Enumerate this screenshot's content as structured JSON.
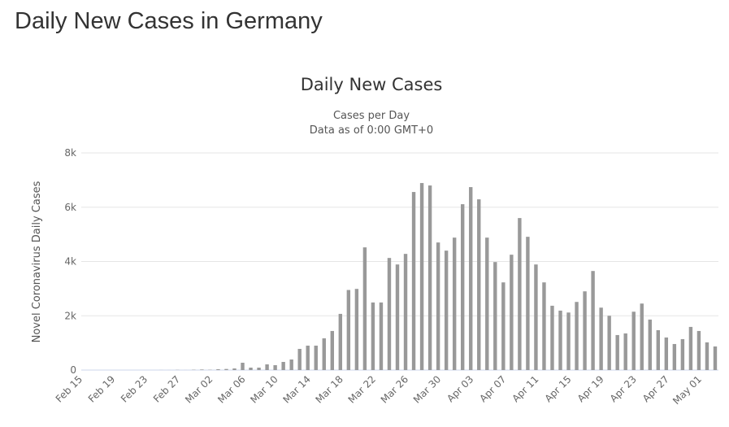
{
  "page": {
    "title": "Daily New Cases in Germany"
  },
  "chart_data": {
    "type": "bar",
    "title": "Daily New Cases",
    "subtitle": [
      "Cases per Day",
      "Data as of 0:00 GMT+0"
    ],
    "xlabel": "",
    "ylabel": "Novel Coronavirus Daily Cases",
    "ylim": [
      0,
      8000
    ],
    "yticks": [
      {
        "v": 0,
        "label": "0"
      },
      {
        "v": 2000,
        "label": "2k"
      },
      {
        "v": 4000,
        "label": "4k"
      },
      {
        "v": 6000,
        "label": "6k"
      },
      {
        "v": 8000,
        "label": "8k"
      }
    ],
    "grid": true,
    "bar_color": "#999999",
    "xtick_every": 4,
    "categories": [
      "Feb 15",
      "Feb 16",
      "Feb 17",
      "Feb 18",
      "Feb 19",
      "Feb 20",
      "Feb 21",
      "Feb 22",
      "Feb 23",
      "Feb 24",
      "Feb 25",
      "Feb 26",
      "Feb 27",
      "Feb 28",
      "Feb 29",
      "Mar 01",
      "Mar 02",
      "Mar 03",
      "Mar 04",
      "Mar 05",
      "Mar 06",
      "Mar 07",
      "Mar 08",
      "Mar 09",
      "Mar 10",
      "Mar 11",
      "Mar 12",
      "Mar 13",
      "Mar 14",
      "Mar 15",
      "Mar 16",
      "Mar 17",
      "Mar 18",
      "Mar 19",
      "Mar 20",
      "Mar 21",
      "Mar 22",
      "Mar 23",
      "Mar 24",
      "Mar 25",
      "Mar 26",
      "Mar 27",
      "Mar 28",
      "Mar 29",
      "Mar 30",
      "Mar 31",
      "Apr 01",
      "Apr 02",
      "Apr 03",
      "Apr 04",
      "Apr 05",
      "Apr 06",
      "Apr 07",
      "Apr 08",
      "Apr 09",
      "Apr 10",
      "Apr 11",
      "Apr 12",
      "Apr 13",
      "Apr 14",
      "Apr 15",
      "Apr 16",
      "Apr 17",
      "Apr 18",
      "Apr 19",
      "Apr 20",
      "Apr 21",
      "Apr 22",
      "Apr 23",
      "Apr 24",
      "Apr 25",
      "Apr 26",
      "Apr 27",
      "Apr 28",
      "Apr 29",
      "Apr 30",
      "May 01",
      "May 02",
      "May 03"
    ],
    "values": [
      0,
      0,
      0,
      0,
      0,
      0,
      0,
      0,
      0,
      0,
      2,
      1,
      6,
      1,
      11,
      20,
      10,
      30,
      40,
      60,
      270,
      90,
      90,
      210,
      180,
      300,
      390,
      780,
      900,
      900,
      1170,
      1440,
      2070,
      2950,
      2990,
      4520,
      2490,
      2490,
      4130,
      3890,
      4280,
      6560,
      6890,
      6800,
      4700,
      4400,
      4880,
      6110,
      6740,
      6290,
      4880,
      3980,
      3230,
      4250,
      5600,
      4910,
      3890,
      3230,
      2370,
      2190,
      2120,
      2510,
      2900,
      3650,
      2300,
      2000,
      1290,
      1350,
      2150,
      2450,
      1860,
      1470,
      1200,
      960,
      1140,
      1590,
      1440,
      1020,
      870
    ]
  }
}
